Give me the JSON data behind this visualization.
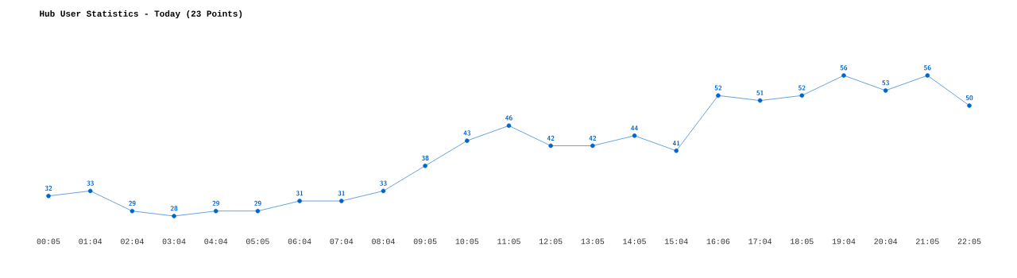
{
  "chart_data": {
    "type": "line",
    "title": "Hub User Statistics - Today (23 Points)",
    "categories": [
      "00:05",
      "01:04",
      "02:04",
      "03:04",
      "04:04",
      "05:05",
      "06:04",
      "07:04",
      "08:04",
      "09:05",
      "10:05",
      "11:05",
      "12:05",
      "13:05",
      "14:05",
      "15:04",
      "16:06",
      "17:04",
      "18:05",
      "19:04",
      "20:04",
      "21:05",
      "22:05"
    ],
    "values": [
      32,
      33,
      29,
      28,
      29,
      29,
      31,
      31,
      33,
      38,
      43,
      46,
      42,
      42,
      44,
      41,
      52,
      51,
      52,
      56,
      53,
      56,
      50
    ],
    "color": "#0066cc",
    "marker": "circle",
    "data_labels": true
  }
}
